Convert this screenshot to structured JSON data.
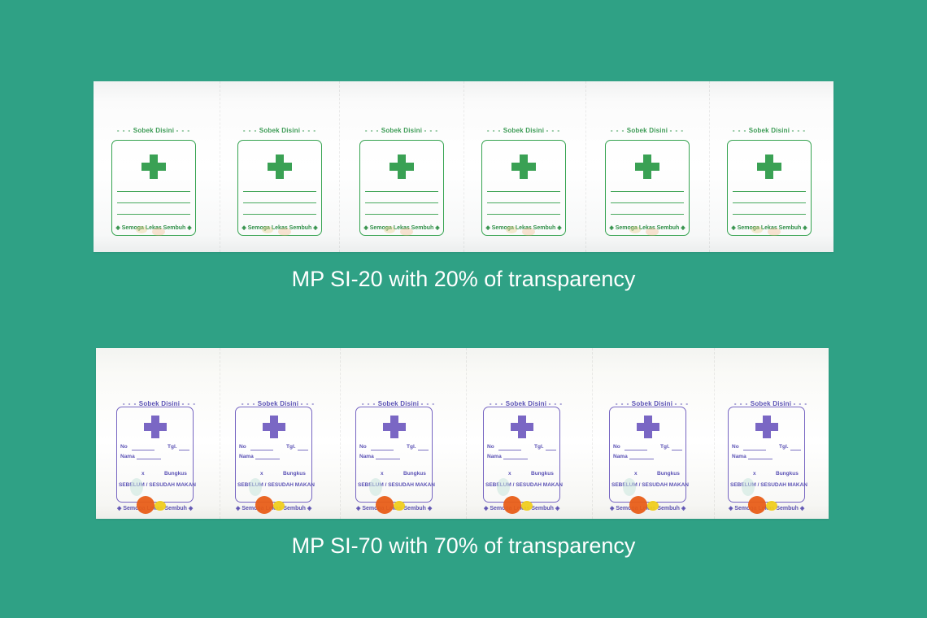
{
  "colors": {
    "background": "#2fa185",
    "si20_print": "#3aa154",
    "si70_print": "#7a67c4"
  },
  "products": [
    {
      "caption": "MP SI-20 with 20% of transparency",
      "transparency_percent": 20,
      "label_top": "Sobek Disini",
      "label_bottom": "Semoga Lekas Sembuh",
      "sachet_count": 6,
      "icon": "medical-cross-icon"
    },
    {
      "caption": "MP SI-70 with 70% of transparency",
      "transparency_percent": 70,
      "label_top": "Sobek Disini",
      "label_bottom": "Semoga Lekas Sembuh",
      "field_no": "No",
      "field_tgl": "Tgl.",
      "field_nama": "Nama",
      "field_x": "x",
      "field_bungkus": "Bungkus",
      "meal_instruction": "SEBELUM / SESUDAH MAKAN",
      "sachet_count": 6,
      "icon": "medical-cross-icon"
    }
  ]
}
